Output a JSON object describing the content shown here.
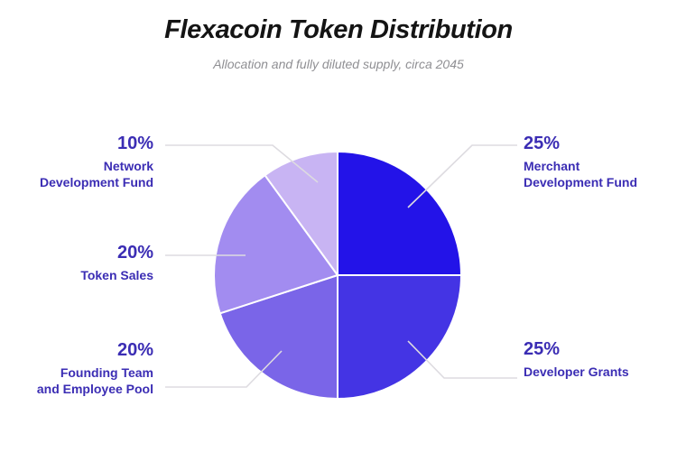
{
  "chart_data": {
    "type": "pie",
    "title": "Flexacoin Token Distribution",
    "subtitle": "Allocation and fully diluted supply, circa 2045",
    "unit": "%",
    "total": 100,
    "legend_position": "callout-labels",
    "label_color": "#3B2DB4",
    "slices": [
      {
        "name": "Merchant Development Fund",
        "label": "Merchant\nDevelopment Fund",
        "pct_label": "25%",
        "value": 25,
        "color": "#2313E8"
      },
      {
        "name": "Developer Grants",
        "label": "Developer Grants",
        "pct_label": "25%",
        "value": 25,
        "color": "#4434E4"
      },
      {
        "name": "Founding Team and Employee Pool",
        "label": "Founding Team\nand Employee Pool",
        "pct_label": "20%",
        "value": 20,
        "color": "#7A65E8"
      },
      {
        "name": "Token Sales",
        "label": "Token Sales",
        "pct_label": "20%",
        "value": 20,
        "color": "#A28CF0"
      },
      {
        "name": "Network Development Fund",
        "label": "Network\nDevelopment Fund",
        "pct_label": "10%",
        "value": 10,
        "color": "#C8B4F3"
      }
    ]
  }
}
